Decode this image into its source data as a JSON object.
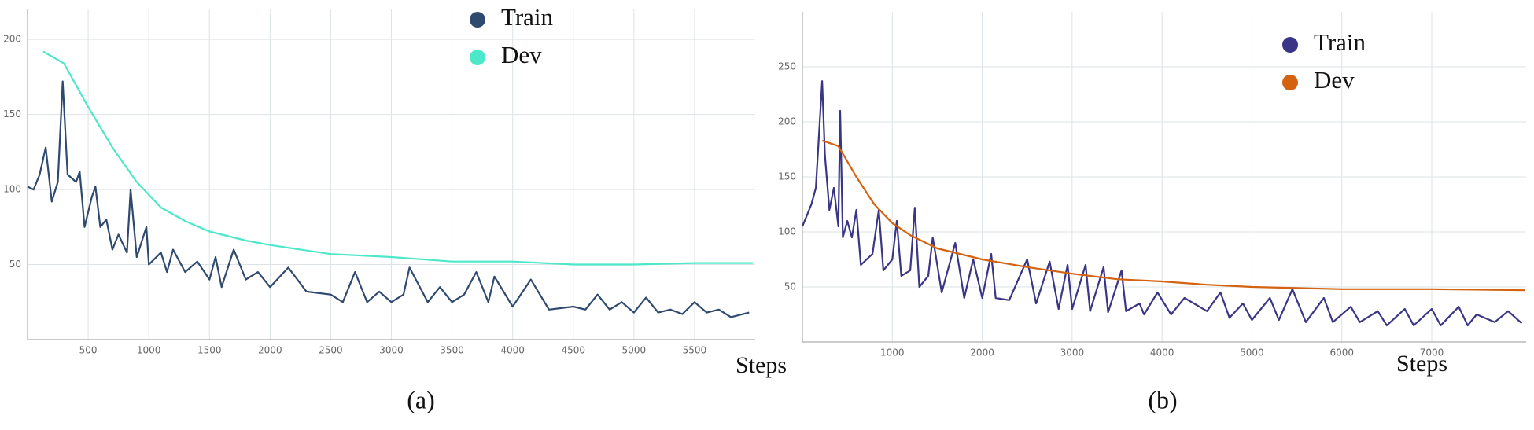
{
  "chart_data": [
    {
      "type": "line",
      "caption": "(a)",
      "xlabel": "Steps",
      "xlim": [
        0,
        6000
      ],
      "ylim": [
        0,
        220
      ],
      "xticks": [
        500,
        1000,
        1500,
        2000,
        2500,
        3000,
        3500,
        4000,
        4500,
        5000,
        5500
      ],
      "yticks": [
        50,
        100,
        150,
        200
      ],
      "grid": true,
      "series": [
        {
          "name": "Train",
          "color": "#2f4a6e",
          "x": [
            0,
            50,
            100,
            150,
            200,
            250,
            290,
            330,
            400,
            430,
            470,
            530,
            560,
            600,
            650,
            700,
            750,
            820,
            850,
            900,
            980,
            1000,
            1100,
            1150,
            1200,
            1300,
            1400,
            1500,
            1550,
            1600,
            1700,
            1800,
            1900,
            2000,
            2150,
            2300,
            2500,
            2600,
            2700,
            2800,
            2900,
            3000,
            3100,
            3150,
            3300,
            3400,
            3500,
            3600,
            3700,
            3800,
            3850,
            4000,
            4150,
            4300,
            4500,
            4600,
            4700,
            4800,
            4900,
            5000,
            5100,
            5200,
            5300,
            5400,
            5500,
            5600,
            5700,
            5800,
            5950
          ],
          "values": [
            102,
            100,
            110,
            128,
            92,
            105,
            172,
            110,
            105,
            112,
            75,
            95,
            102,
            75,
            80,
            60,
            70,
            58,
            100,
            55,
            75,
            50,
            58,
            45,
            60,
            45,
            52,
            40,
            55,
            35,
            60,
            40,
            45,
            35,
            48,
            32,
            30,
            25,
            45,
            25,
            32,
            25,
            30,
            48,
            25,
            35,
            25,
            30,
            45,
            25,
            42,
            22,
            40,
            20,
            22,
            20,
            30,
            20,
            25,
            18,
            28,
            18,
            20,
            17,
            25,
            18,
            20,
            15,
            18
          ]
        },
        {
          "name": "Dev",
          "color": "#4de8c9",
          "x": [
            130,
            300,
            500,
            700,
            900,
            1100,
            1300,
            1500,
            1800,
            2000,
            2500,
            3000,
            3500,
            4000,
            4500,
            5000,
            5500,
            5980
          ],
          "values": [
            192,
            184,
            155,
            128,
            105,
            88,
            79,
            72,
            66,
            63,
            57,
            55,
            52,
            52,
            50,
            50,
            51,
            51
          ]
        }
      ]
    },
    {
      "type": "line",
      "caption": "(b)",
      "xlabel": "Steps",
      "xlim": [
        0,
        8050
      ],
      "ylim": [
        0,
        300
      ],
      "xticks": [
        1000,
        2000,
        3000,
        4000,
        5000,
        6000,
        7000
      ],
      "yticks": [
        50,
        100,
        150,
        200,
        250
      ],
      "grid": true,
      "series": [
        {
          "name": "Train",
          "color": "#3a3585",
          "x": [
            0,
            100,
            150,
            220,
            250,
            300,
            350,
            400,
            420,
            450,
            500,
            550,
            600,
            650,
            780,
            850,
            900,
            1000,
            1050,
            1100,
            1200,
            1250,
            1300,
            1400,
            1450,
            1550,
            1700,
            1800,
            1900,
            2000,
            2100,
            2150,
            2300,
            2500,
            2600,
            2750,
            2850,
            2950,
            3000,
            3150,
            3200,
            3350,
            3400,
            3550,
            3600,
            3750,
            3800,
            3950,
            4100,
            4250,
            4500,
            4650,
            4750,
            4900,
            5000,
            5200,
            5300,
            5450,
            5600,
            5800,
            5900,
            6100,
            6200,
            6400,
            6500,
            6700,
            6800,
            7000,
            7100,
            7300,
            7400,
            7500,
            7700,
            7850,
            8000
          ],
          "values": [
            105,
            125,
            140,
            237,
            170,
            120,
            140,
            105,
            210,
            95,
            110,
            95,
            120,
            70,
            80,
            120,
            65,
            75,
            110,
            60,
            65,
            122,
            50,
            60,
            95,
            45,
            90,
            40,
            75,
            40,
            80,
            40,
            38,
            75,
            35,
            73,
            30,
            70,
            30,
            70,
            28,
            68,
            27,
            65,
            28,
            35,
            25,
            45,
            25,
            40,
            28,
            45,
            22,
            35,
            20,
            40,
            20,
            48,
            18,
            40,
            18,
            32,
            18,
            28,
            15,
            30,
            15,
            30,
            15,
            32,
            15,
            25,
            18,
            28,
            17
          ]
        },
        {
          "name": "Dev",
          "color": "#d4620f",
          "x": [
            220,
            400,
            600,
            800,
            1000,
            1200,
            1500,
            2000,
            2500,
            3000,
            3500,
            4000,
            4500,
            5000,
            5500,
            6000,
            7000,
            8040
          ],
          "values": [
            183,
            178,
            150,
            125,
            108,
            97,
            85,
            75,
            68,
            62,
            57,
            55,
            52,
            50,
            49,
            48,
            48,
            47
          ]
        }
      ]
    }
  ]
}
